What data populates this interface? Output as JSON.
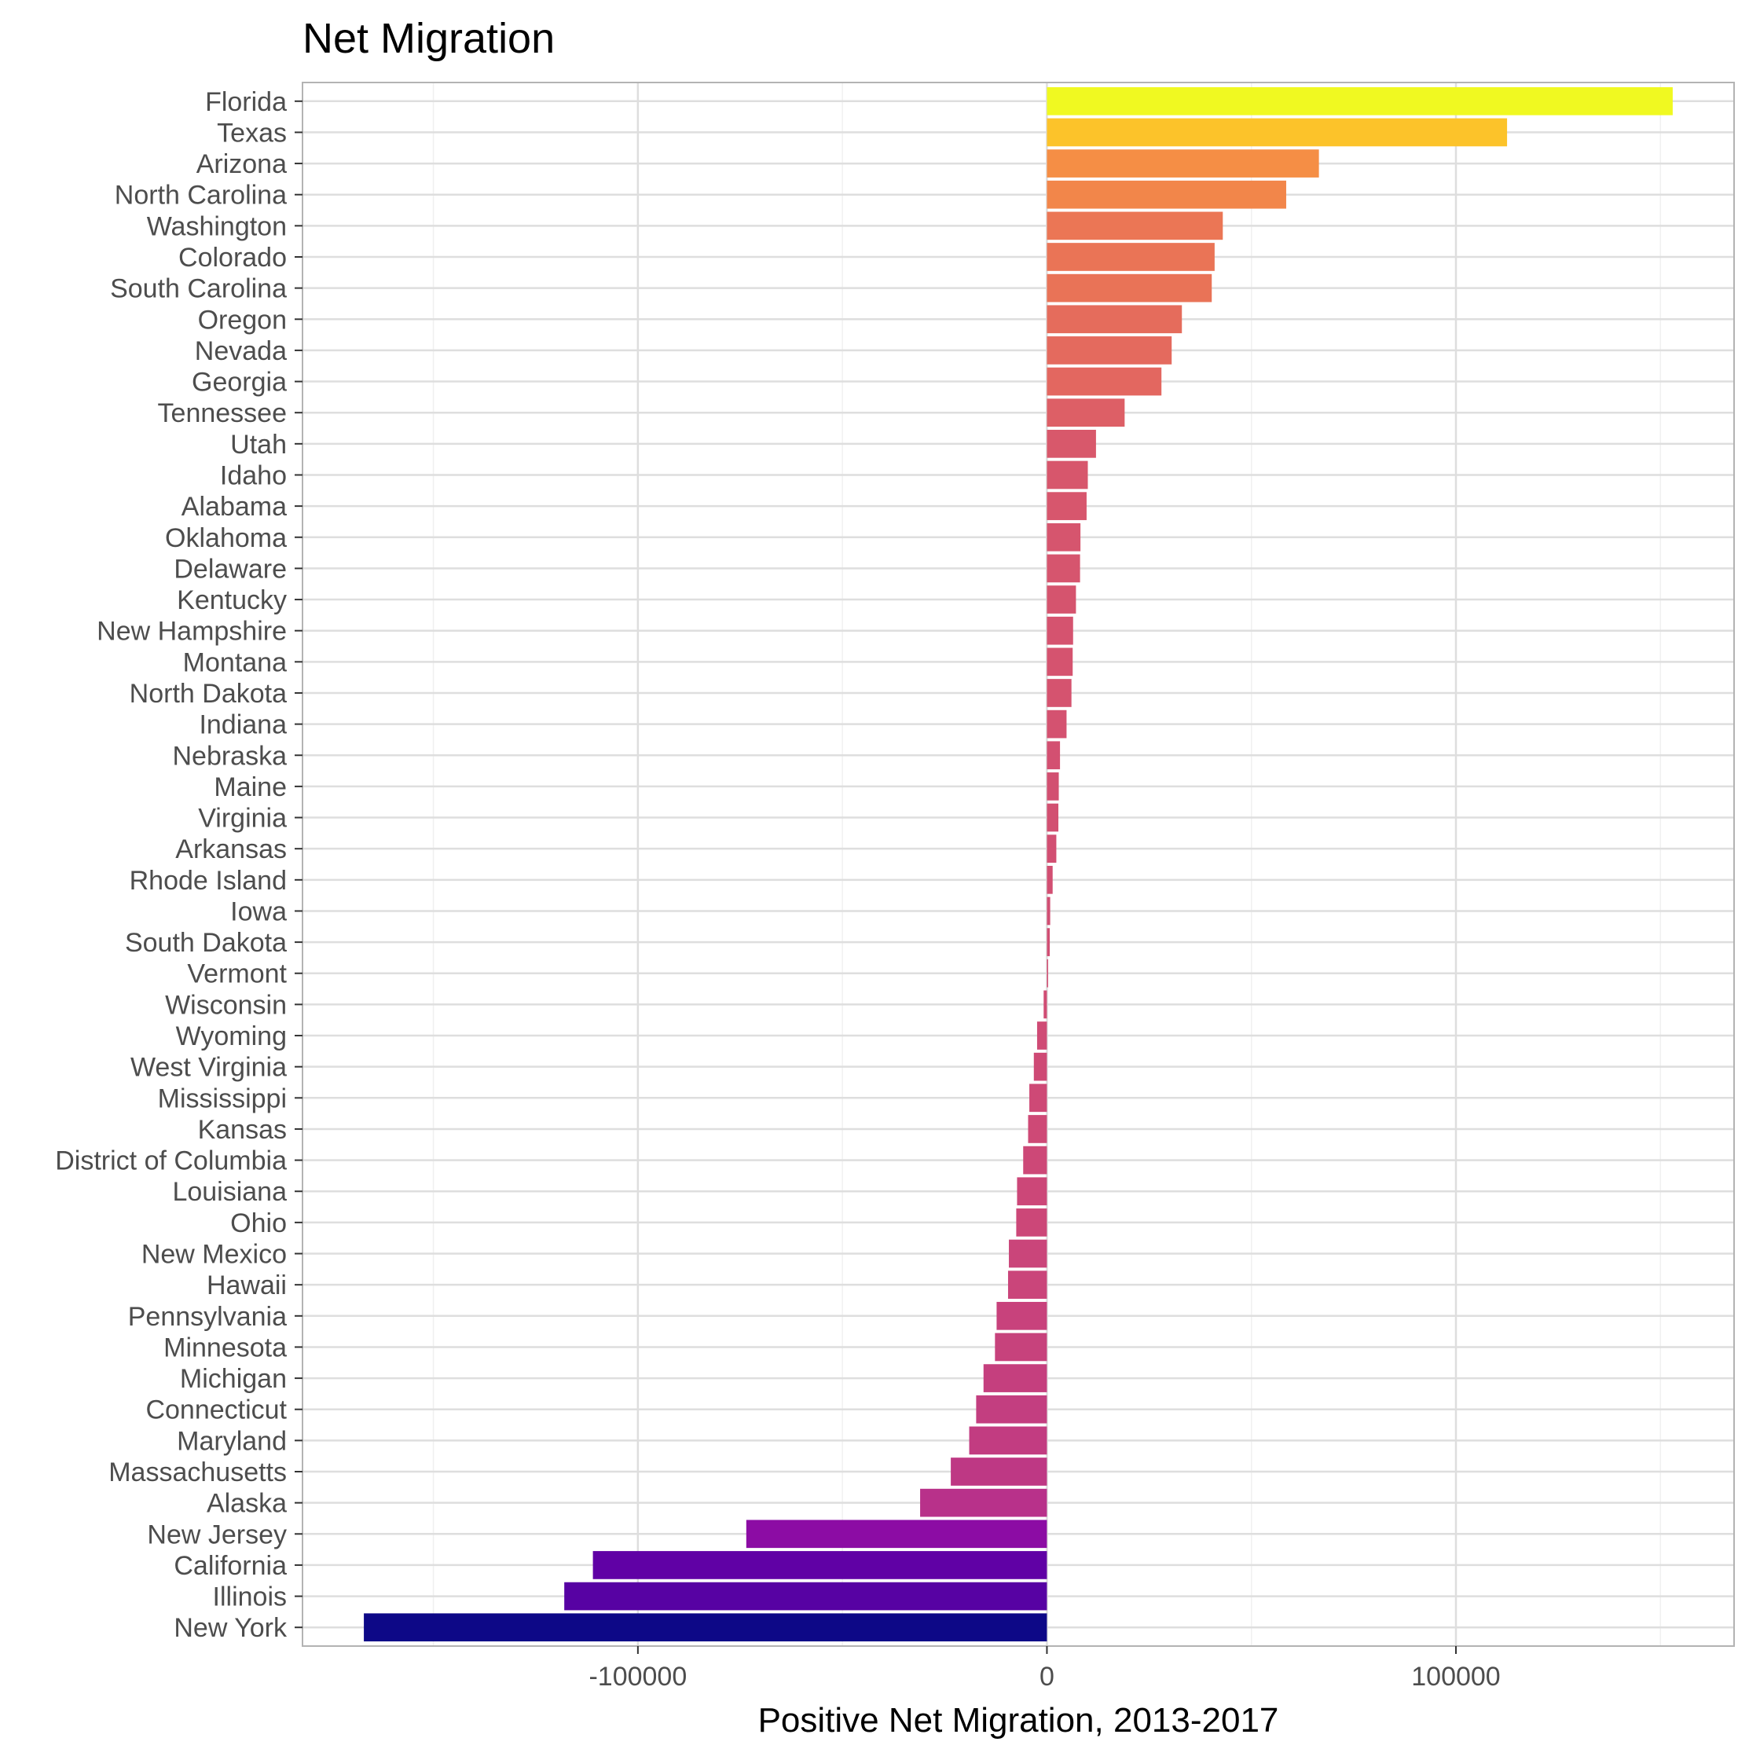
{
  "chart_data": {
    "type": "bar",
    "orientation": "horizontal",
    "title": "Net Migration",
    "xlabel": "Positive Net Migration, 2013-2017",
    "ylabel": "",
    "xlim": [
      -182000,
      168000
    ],
    "xticks": [
      -100000,
      0,
      100000
    ],
    "xtick_labels": [
      "-100000",
      "0",
      "100000"
    ],
    "grid": true,
    "colormap": "plasma",
    "categories": [
      "Florida",
      "Texas",
      "Arizona",
      "North Carolina",
      "Washington",
      "Colorado",
      "South Carolina",
      "Oregon",
      "Nevada",
      "Georgia",
      "Tennessee",
      "Utah",
      "Idaho",
      "Alabama",
      "Oklahoma",
      "Delaware",
      "Kentucky",
      "New Hampshire",
      "Montana",
      "North Dakota",
      "Indiana",
      "Nebraska",
      "Maine",
      "Virginia",
      "Arkansas",
      "Rhode Island",
      "Iowa",
      "South Dakota",
      "Vermont",
      "Wisconsin",
      "Wyoming",
      "West Virginia",
      "Mississippi",
      "Kansas",
      "District of Columbia",
      "Louisiana",
      "Ohio",
      "New Mexico",
      "Hawaii",
      "Pennsylvania",
      "Minnesota",
      "Michigan",
      "Connecticut",
      "Maryland",
      "Massachusetts",
      "Alaska",
      "New Jersey",
      "California",
      "Illinois",
      "New York"
    ],
    "values": [
      153000,
      112500,
      66500,
      58500,
      43000,
      41000,
      40300,
      33000,
      30500,
      28000,
      19000,
      12000,
      10000,
      9700,
      8200,
      8100,
      7100,
      6400,
      6300,
      6000,
      4800,
      3200,
      2900,
      2800,
      2300,
      1400,
      800,
      700,
      300,
      -800,
      -2400,
      -3200,
      -4300,
      -4600,
      -5800,
      -7300,
      -7500,
      -9300,
      -9500,
      -12300,
      -12700,
      -15500,
      -17300,
      -19000,
      -23500,
      -31000,
      -73500,
      -111000,
      -118000,
      -167000
    ]
  }
}
